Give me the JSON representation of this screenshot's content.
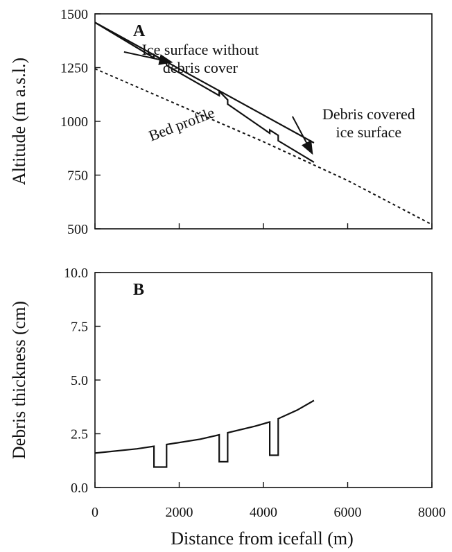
{
  "chart_data": [
    {
      "panel": "A",
      "type": "line",
      "ylabel": "Altitude (m a.s.l.)",
      "xlabel": "",
      "xlim": [
        0,
        8000
      ],
      "ylim": [
        500,
        1500
      ],
      "xticks": [
        0,
        2000,
        4000,
        6000,
        8000
      ],
      "yticks": [
        500,
        750,
        1000,
        1250,
        1500
      ],
      "ytick_labels": [
        "500",
        "750",
        "1000",
        "1250",
        "1500"
      ],
      "grid": false,
      "series": [
        {
          "name": "Ice surface without debris cover",
          "style": "solid",
          "x": [
            0,
            5200
          ],
          "y": [
            1460,
            900
          ]
        },
        {
          "name": "Debris covered ice surface",
          "style": "solid",
          "x": [
            0,
            1400,
            1400,
            1700,
            1700,
            2950,
            2950,
            3150,
            3150,
            4150,
            4150,
            4350,
            4350,
            5200
          ],
          "y": [
            1460,
            1295,
            1310,
            1270,
            1260,
            1120,
            1140,
            1100,
            1080,
            945,
            960,
            935,
            910,
            810
          ]
        },
        {
          "name": "Bed profile",
          "style": "dotted",
          "x": [
            0,
            2000,
            4000,
            6000,
            8000
          ],
          "y": [
            1245,
            1075,
            905,
            725,
            520
          ]
        }
      ],
      "annotations": [
        {
          "text": [
            "Ice surface without",
            "debris cover"
          ],
          "x": 2500,
          "y": 1310,
          "arrow_to": [
            1820,
            1275
          ]
        },
        {
          "text": [
            "Debris covered",
            "ice surface"
          ],
          "x": 6500,
          "y": 1010,
          "arrow_to": [
            5160,
            850
          ]
        },
        {
          "text": [
            "Bed profile"
          ],
          "x": 2100,
          "y": 965,
          "rotate": -21
        }
      ]
    },
    {
      "panel": "B",
      "type": "line",
      "ylabel": "Debris thickness (cm)",
      "xlabel": "Distance from icefall (m)",
      "xlim": [
        0,
        8000
      ],
      "ylim": [
        0,
        10
      ],
      "xticks": [
        0,
        2000,
        4000,
        6000,
        8000
      ],
      "xtick_labels": [
        "0",
        "2000",
        "4000",
        "6000",
        "8000"
      ],
      "yticks": [
        0,
        2.5,
        5,
        7.5,
        10
      ],
      "ytick_labels": [
        "0.0",
        "2.5",
        "5.0",
        "7.5",
        "10.0"
      ],
      "grid": false,
      "series": [
        {
          "name": "",
          "style": "solid",
          "x": [
            0,
            1000,
            1400,
            1400,
            1700,
            1700,
            2500,
            2950,
            2950,
            3150,
            3150,
            3800,
            4150,
            4150,
            4350,
            4350,
            4800,
            5200
          ],
          "y": [
            1.6,
            1.8,
            1.92,
            0.95,
            0.95,
            2.0,
            2.25,
            2.45,
            1.2,
            1.2,
            2.55,
            2.85,
            3.05,
            1.5,
            1.5,
            3.2,
            3.6,
            4.05
          ]
        }
      ]
    }
  ]
}
